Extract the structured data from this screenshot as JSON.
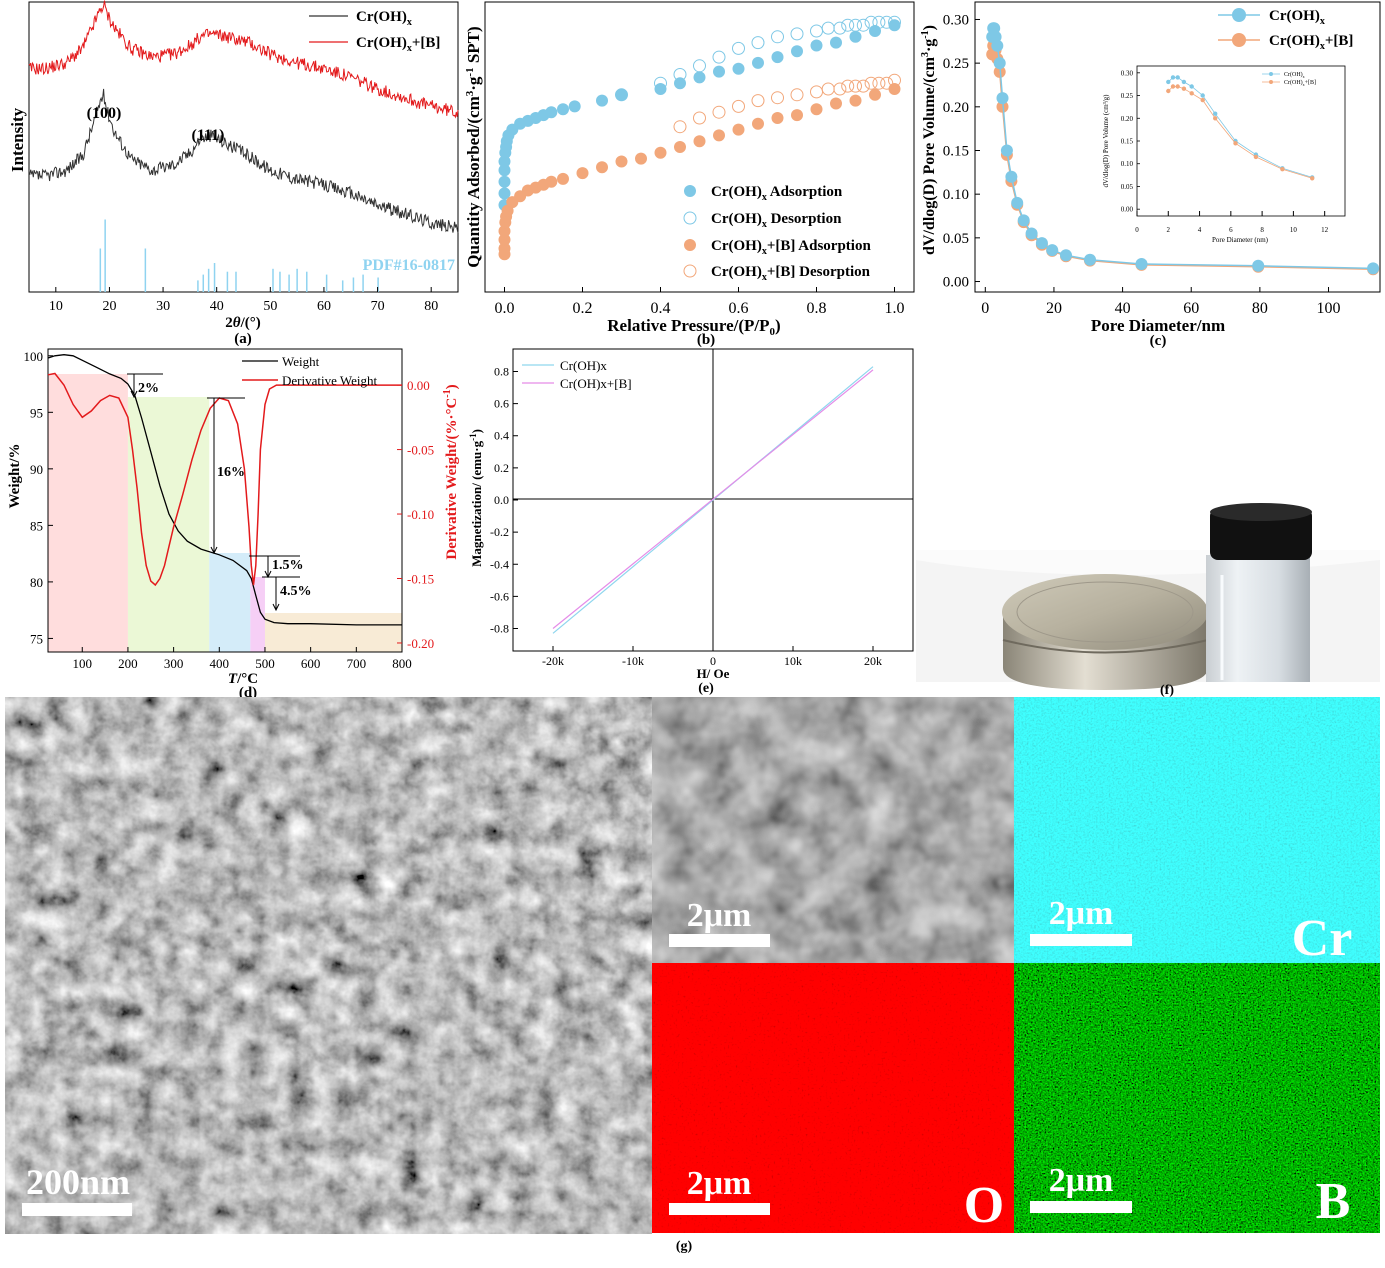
{
  "colors": {
    "black": "#000000",
    "red": "#e31a1c",
    "blue": "#7ec8e6",
    "orange": "#f2a77a",
    "ref": "#8fd3f0",
    "cyan": "#16c8c8",
    "green": "#1f8f1f",
    "pink": "#ffd7d7",
    "lime": "#e8f7cf",
    "skyblue": "#cde9f8",
    "violet": "#f4c7f4",
    "tan": "#f7e7cf",
    "mag_blue": "#8fd6ee",
    "mag_pink": "#e58ce8"
  },
  "chart_data": [
    {
      "panel": "(a)",
      "type": "line",
      "xlabel": "2θ/(°)",
      "ylabel": "Intensity",
      "xlim": [
        5,
        85
      ],
      "xticks": [
        10,
        20,
        30,
        40,
        50,
        60,
        70,
        80
      ],
      "series": [
        {
          "name": "Cr(OH)x",
          "label_main": "Cr(OH)",
          "label_sub": "x",
          "x": [
            5,
            8,
            12,
            15,
            17,
            18.5,
            19,
            19.5,
            21,
            24,
            28,
            32,
            35,
            37,
            39,
            42,
            46,
            50,
            55,
            60,
            65,
            70,
            75,
            80,
            85
          ],
          "y": [
            0.4,
            0.4,
            0.42,
            0.47,
            0.58,
            0.67,
            0.68,
            0.63,
            0.55,
            0.46,
            0.42,
            0.44,
            0.48,
            0.53,
            0.54,
            0.51,
            0.47,
            0.42,
            0.39,
            0.37,
            0.34,
            0.3,
            0.27,
            0.24,
            0.22
          ]
        },
        {
          "name": "Cr(OH)x+[B]",
          "label_main": "Cr(OH)",
          "label_sub": "x",
          "label_tail": "+[B]",
          "x": [
            5,
            8,
            12,
            15,
            17,
            18.5,
            19,
            19.5,
            21,
            24,
            28,
            32,
            35,
            37,
            39,
            42,
            46,
            50,
            55,
            60,
            65,
            70,
            75,
            80,
            85
          ],
          "y": [
            0.77,
            0.77,
            0.79,
            0.84,
            0.92,
            0.98,
            0.99,
            0.96,
            0.91,
            0.84,
            0.81,
            0.82,
            0.85,
            0.88,
            0.89,
            0.88,
            0.86,
            0.82,
            0.79,
            0.77,
            0.74,
            0.7,
            0.67,
            0.64,
            0.62
          ]
        }
      ],
      "reference": {
        "label": "PDF#16-0817",
        "x": [
          18.3,
          19.2,
          26.7,
          36.5,
          37.5,
          38.5,
          39.6,
          42.0,
          43.6,
          50.5,
          51.8,
          53.5,
          55.0,
          56.8,
          60.5,
          63.5,
          65.5,
          67.3,
          70.1
        ],
        "h": [
          0.15,
          0.25,
          0.15,
          0.04,
          0.06,
          0.08,
          0.1,
          0.07,
          0.07,
          0.08,
          0.07,
          0.06,
          0.08,
          0.07,
          0.06,
          0.04,
          0.05,
          0.06,
          0.05
        ]
      },
      "annotations": [
        {
          "text": "(100)",
          "x": 19,
          "y": 0.76
        },
        {
          "text": "(111)",
          "x": 38.5,
          "y": 0.62
        }
      ]
    },
    {
      "panel": "(b)",
      "type": "scatter",
      "xlabel_main": "Relative Pressure/(P/P",
      "xlabel_sub": "0",
      "xlabel_tail": ")",
      "ylabel_main": "Quantity Adsorbed/(cm",
      "ylabel_sup1": "3",
      "ylabel_mid": "·g",
      "ylabel_sup2": "-1",
      "ylabel_tail": " SPT)",
      "xlim": [
        -0.05,
        1.05
      ],
      "xticks": [
        "0.0",
        "0.2",
        "0.4",
        "0.6",
        "0.8",
        "1.0"
      ],
      "ylim": [
        0,
        1
      ],
      "series": [
        {
          "name": "Cr(OH)x Adsorption",
          "label_main": "Cr(OH)",
          "label_sub": "x",
          "label_tail": " Adsorption",
          "filled": true,
          "color": "blue",
          "x": [
            0.0,
            0.0,
            0.0,
            0.0,
            0.0,
            0.002,
            0.004,
            0.006,
            0.01,
            0.02,
            0.04,
            0.06,
            0.08,
            0.1,
            0.12,
            0.15,
            0.18,
            0.25,
            0.3,
            0.4,
            0.45,
            0.5,
            0.55,
            0.6,
            0.65,
            0.7,
            0.75,
            0.8,
            0.85,
            0.9,
            0.95,
            1.0
          ],
          "y": [
            0.3,
            0.34,
            0.38,
            0.42,
            0.45,
            0.48,
            0.5,
            0.52,
            0.54,
            0.56,
            0.58,
            0.59,
            0.6,
            0.61,
            0.62,
            0.63,
            0.64,
            0.66,
            0.68,
            0.7,
            0.72,
            0.74,
            0.76,
            0.77,
            0.79,
            0.81,
            0.83,
            0.85,
            0.86,
            0.88,
            0.9,
            0.92
          ]
        },
        {
          "name": "Cr(OH)x Desorption",
          "label_main": "Cr(OH)",
          "label_sub": "x",
          "label_tail": " Desorption",
          "filled": false,
          "color": "blue",
          "x": [
            0.3,
            0.4,
            0.45,
            0.5,
            0.55,
            0.6,
            0.65,
            0.7,
            0.75,
            0.8,
            0.83,
            0.86,
            0.88,
            0.9,
            0.92,
            0.94,
            0.96,
            0.98,
            1.0
          ],
          "y": [
            0.68,
            0.72,
            0.75,
            0.78,
            0.81,
            0.84,
            0.86,
            0.88,
            0.89,
            0.9,
            0.91,
            0.91,
            0.92,
            0.92,
            0.92,
            0.93,
            0.93,
            0.93,
            0.93
          ]
        },
        {
          "name": "Cr(OH)x+[B] Adsorption",
          "label_main": "Cr(OH)",
          "label_sub": "x",
          "label_tail": "+[B] Adsorption",
          "filled": true,
          "color": "orange",
          "x": [
            0.0,
            0.0,
            0.0,
            0.0,
            0.002,
            0.004,
            0.008,
            0.02,
            0.04,
            0.06,
            0.08,
            0.1,
            0.12,
            0.15,
            0.2,
            0.25,
            0.3,
            0.35,
            0.4,
            0.45,
            0.5,
            0.55,
            0.6,
            0.65,
            0.7,
            0.75,
            0.8,
            0.85,
            0.9,
            0.95,
            1.0
          ],
          "y": [
            0.13,
            0.15,
            0.18,
            0.21,
            0.24,
            0.26,
            0.28,
            0.31,
            0.33,
            0.35,
            0.36,
            0.37,
            0.38,
            0.39,
            0.41,
            0.43,
            0.45,
            0.46,
            0.48,
            0.5,
            0.52,
            0.54,
            0.56,
            0.58,
            0.6,
            0.61,
            0.63,
            0.65,
            0.66,
            0.68,
            0.7
          ]
        },
        {
          "name": "Cr(OH)x+[B] Desorption",
          "label_main": "Cr(OH)",
          "label_sub": "x",
          "label_tail": "+[B] Desorption",
          "filled": false,
          "color": "orange",
          "x": [
            0.45,
            0.5,
            0.55,
            0.6,
            0.65,
            0.7,
            0.75,
            0.8,
            0.83,
            0.86,
            0.88,
            0.9,
            0.92,
            0.94,
            0.96,
            0.98,
            1.0
          ],
          "y": [
            0.57,
            0.6,
            0.62,
            0.64,
            0.66,
            0.67,
            0.68,
            0.69,
            0.7,
            0.7,
            0.71,
            0.71,
            0.71,
            0.72,
            0.72,
            0.72,
            0.73
          ]
        }
      ]
    },
    {
      "panel": "(c)",
      "type": "scatter",
      "xlabel": "Pore Diameter/nm",
      "ylabel_main": "dV/dlog(D) Pore Volume/(cm",
      "ylabel_sup1": "3",
      "ylabel_mid": "·g",
      "ylabel_sup2": "-1",
      "ylabel_tail": ")",
      "xlim": [
        -3,
        115
      ],
      "xticks": [
        0,
        20,
        40,
        60,
        80,
        100
      ],
      "ylim": [
        -0.012,
        0.32
      ],
      "yticks": [
        "0.00",
        "0.05",
        "0.10",
        "0.15",
        "0.20",
        "0.25",
        "0.30"
      ],
      "series": [
        {
          "name": "Cr(OH)x",
          "label_main": "Cr(OH)",
          "label_sub": "x",
          "color": "blue",
          "x": [
            2.0,
            2.3,
            2.6,
            3.0,
            3.5,
            4.2,
            5.0,
            6.3,
            7.6,
            9.3,
            11.2,
            13.5,
            16.5,
            19.5,
            23.5,
            30.5,
            45.5,
            79.5,
            113
          ],
          "y": [
            0.28,
            0.29,
            0.29,
            0.28,
            0.27,
            0.25,
            0.21,
            0.15,
            0.12,
            0.09,
            0.07,
            0.055,
            0.044,
            0.036,
            0.03,
            0.025,
            0.02,
            0.018,
            0.015
          ]
        },
        {
          "name": "Cr(OH)x+[B]",
          "label_main": "Cr(OH)",
          "label_sub": "x",
          "label_tail": "+[B]",
          "color": "orange",
          "x": [
            2.0,
            2.3,
            2.6,
            3.0,
            3.5,
            4.2,
            5.0,
            6.3,
            7.6,
            9.3,
            11.2,
            13.5,
            16.5,
            19.5,
            23.5,
            30.5,
            45.5,
            79.5,
            113
          ],
          "y": [
            0.26,
            0.27,
            0.27,
            0.265,
            0.255,
            0.24,
            0.2,
            0.145,
            0.115,
            0.088,
            0.068,
            0.053,
            0.042,
            0.035,
            0.029,
            0.024,
            0.019,
            0.017,
            0.014
          ]
        }
      ],
      "inset": {
        "xlabel": "Pore Diameter (nm)",
        "ylabel": "dV/dlog(D) Pore Volume (cm³/g)",
        "xticks": [
          0,
          2,
          4,
          6,
          8,
          10,
          12
        ],
        "yticks": [
          "0.00",
          "0.05",
          "0.10",
          "0.15",
          "0.20",
          "0.25",
          "0.30"
        ],
        "legend": [
          {
            "label_main": "Cr(OH)",
            "label_sub": "x"
          },
          {
            "label_main": "Cr(OH)",
            "label_sub": "x",
            "label_tail": "+[B]"
          }
        ]
      }
    },
    {
      "panel": "(d)",
      "type": "line",
      "xlabel": "T/°C",
      "ylabel_left": "Weight/%",
      "ylabel_right_main": "Derivative Weight/(%·°C",
      "ylabel_right_sup": "-1",
      "ylabel_right_tail": ")",
      "xlim": [
        25,
        800
      ],
      "xticks": [
        100,
        200,
        300,
        400,
        500,
        600,
        700,
        800
      ],
      "ylim_left": [
        73.8,
        100.6
      ],
      "yticks_left": [
        75,
        80,
        85,
        90,
        95,
        100
      ],
      "ylim_right": [
        -0.207,
        0.028
      ],
      "yticks_right": [
        "0.00",
        "-0.05",
        "-0.10",
        "-0.15",
        "-0.20"
      ],
      "series": [
        {
          "name": "Weight",
          "axis": "left",
          "x": [
            25,
            40,
            60,
            80,
            100,
            130,
            160,
            185,
            200,
            215,
            230,
            250,
            270,
            290,
            310,
            330,
            360,
            400,
            430,
            460,
            470,
            480,
            490,
            500,
            520,
            550,
            600,
            700,
            800
          ],
          "y": [
            99.8,
            100.0,
            100.1,
            100.0,
            99.6,
            99.0,
            98.4,
            98.0,
            97.5,
            96.5,
            94.5,
            91.5,
            88.5,
            86.0,
            84.5,
            83.6,
            82.9,
            82.4,
            81.9,
            81.0,
            80.3,
            78.8,
            77.3,
            76.7,
            76.4,
            76.3,
            76.3,
            76.2,
            76.2
          ]
        },
        {
          "name": "Derivative Weight",
          "axis": "right",
          "x": [
            25,
            40,
            60,
            80,
            100,
            120,
            140,
            160,
            180,
            200,
            210,
            220,
            230,
            240,
            250,
            260,
            270,
            280,
            290,
            300,
            320,
            340,
            360,
            380,
            400,
            420,
            440,
            455,
            465,
            470,
            475,
            480,
            485,
            490,
            500,
            510,
            525,
            550,
            600,
            700,
            800
          ],
          "y": [
            0.008,
            0.009,
            0.0,
            -0.015,
            -0.025,
            -0.02,
            -0.012,
            -0.008,
            -0.01,
            -0.025,
            -0.05,
            -0.08,
            -0.115,
            -0.14,
            -0.152,
            -0.155,
            -0.15,
            -0.14,
            -0.125,
            -0.11,
            -0.085,
            -0.058,
            -0.035,
            -0.018,
            -0.01,
            -0.012,
            -0.03,
            -0.065,
            -0.11,
            -0.14,
            -0.155,
            -0.14,
            -0.1,
            -0.05,
            -0.015,
            -0.003,
            0.0,
            0.0,
            0.0,
            0.0,
            0.0
          ]
        }
      ],
      "regions": [
        {
          "x0": 25,
          "x1": 200,
          "color": "pink"
        },
        {
          "x0": 200,
          "x1": 378,
          "color": "lime"
        },
        {
          "x0": 378,
          "x1": 468,
          "color": "skyblue"
        },
        {
          "x0": 468,
          "x1": 500,
          "color": "violet"
        },
        {
          "x0": 500,
          "x1": 800,
          "color": "tan"
        }
      ],
      "annotations": [
        {
          "text": "2%"
        },
        {
          "text": "16%"
        },
        {
          "text": "1.5%"
        },
        {
          "text": "4.5%"
        }
      ]
    },
    {
      "panel": "(e)",
      "type": "line",
      "xlabel": "H/ Oe",
      "ylabel_main": "Magnetization/ (emu·g",
      "ylabel_sup": "-1",
      "ylabel_tail": ")",
      "xlim": [
        -25000,
        25000
      ],
      "xticks": [
        "-20k",
        "-10k",
        "0",
        "10k",
        "20k"
      ],
      "ylim": [
        -0.94,
        0.94
      ],
      "yticks": [
        "0.8",
        "0.6",
        "0.4",
        "0.2",
        "0.0",
        "-0.2",
        "-0.4",
        "-0.6",
        "-0.8"
      ],
      "series": [
        {
          "name": "Cr(OH)x",
          "color": "mag_blue",
          "x": [
            -20000,
            20000
          ],
          "y": [
            -0.83,
            0.83
          ]
        },
        {
          "name": "Cr(OH)x+[B]",
          "color": "mag_pink",
          "x": [
            -20000,
            20000
          ],
          "y": [
            -0.8,
            0.81
          ]
        }
      ]
    }
  ],
  "panel_labels": {
    "a": "(a)",
    "b": "(b)",
    "c": "(c)",
    "d": "(d)",
    "e": "(e)",
    "f": "(f)",
    "g": "(g)"
  },
  "micrographs": {
    "sem_scale": "200nm",
    "map_scale": "2μm",
    "element_cr": "Cr",
    "element_o": "O",
    "element_b": "B"
  }
}
